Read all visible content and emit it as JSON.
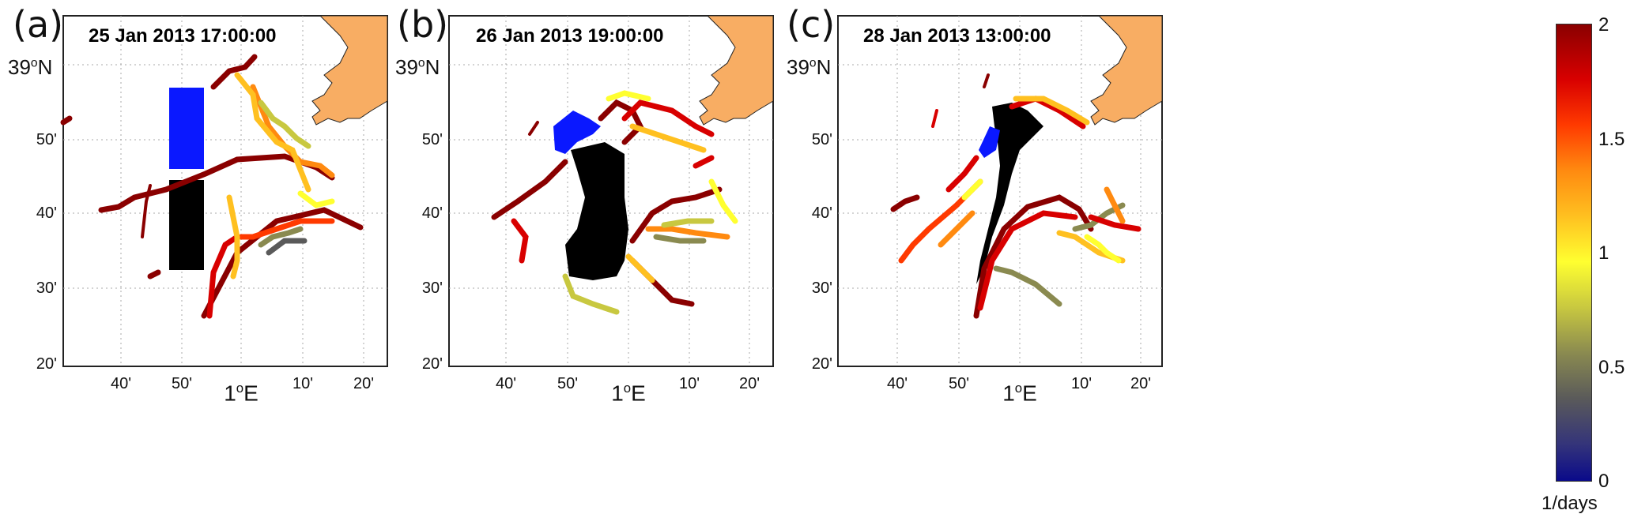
{
  "panels": [
    {
      "label": "(a)",
      "timestamp": "25 Jan 2013 17:00:00"
    },
    {
      "label": "(b)",
      "timestamp": "26 Jan 2013 19:00:00"
    },
    {
      "label": "(c)",
      "timestamp": "28 Jan 2013 13:00:00"
    }
  ],
  "axes": {
    "y_top": "39",
    "y_top_unit": "N",
    "y_ticks": [
      "50'",
      "40'",
      "30'",
      "20'"
    ],
    "x_ticks": [
      "40'",
      "50'",
      "10'",
      "20'"
    ],
    "x_center": "1",
    "x_center_unit": "E",
    "degree_symbol": "o"
  },
  "colorbar": {
    "ticks": [
      "2",
      "1.5",
      "1",
      "0.5",
      "0"
    ],
    "unit": "1/days",
    "range": [
      0,
      2
    ]
  },
  "colors": {
    "land": "#f8ad63",
    "initial_blue": "#0a18ff",
    "initial_black": "#000000",
    "high": "#8a0000",
    "mid": "#ff8a10",
    "low": "#c8c840"
  }
}
